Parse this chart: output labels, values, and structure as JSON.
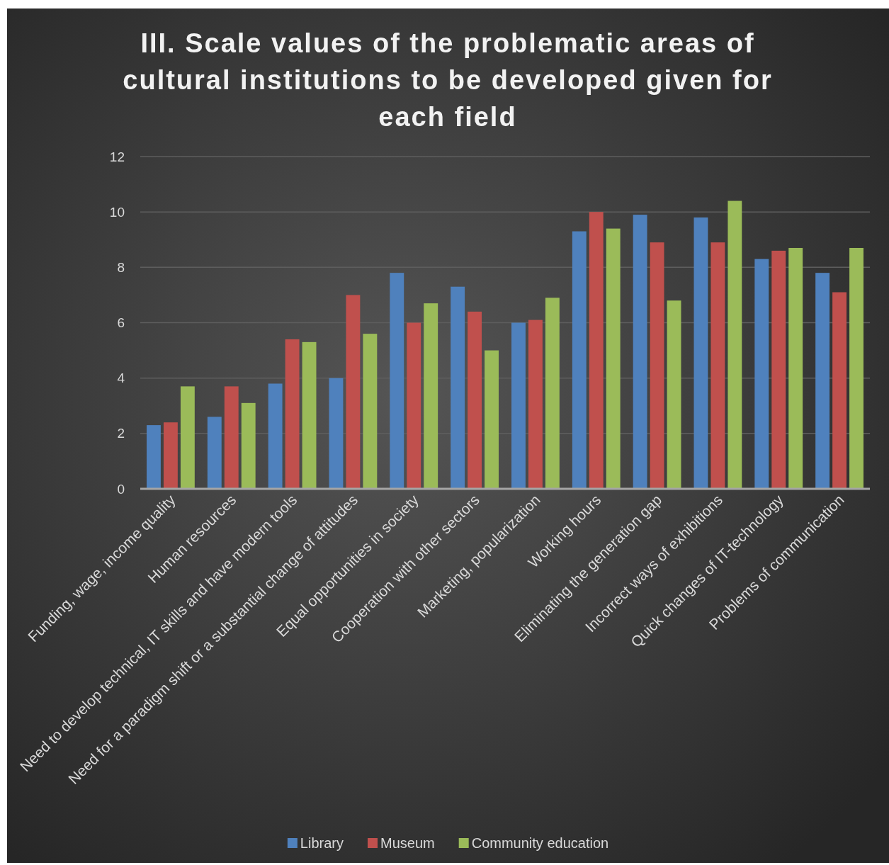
{
  "chart_data": {
    "type": "bar",
    "title": "III. Scale values of the problematic areas of cultural institutions to be developed given for each field",
    "categories": [
      "Funding, wage, income quality",
      "Human resources",
      "Need to develop technical, IT skills and have modern tools",
      "Need for a paradigm shift or a substantial change of attitudes",
      "Equal opportunities in society",
      "Cooperation with other sectors",
      "Marketing, popularization",
      "Working hours",
      "Eliminating the generation gap",
      "Incorrect ways of exhibitions",
      "Quick changes of IT-technology",
      "Problems of communication"
    ],
    "series": [
      {
        "name": "Library",
        "color": "#4f81bd",
        "values": [
          2.3,
          2.6,
          3.8,
          4.0,
          7.8,
          7.3,
          6.0,
          9.3,
          9.9,
          9.8,
          8.3,
          7.8
        ]
      },
      {
        "name": "Museum",
        "color": "#c0504d",
        "values": [
          2.4,
          3.7,
          5.4,
          7.0,
          6.0,
          6.4,
          6.1,
          10.0,
          8.9,
          8.9,
          8.6,
          7.1
        ]
      },
      {
        "name": "Community education",
        "color": "#9bbb59",
        "values": [
          3.7,
          3.1,
          5.3,
          5.6,
          6.7,
          5.0,
          6.9,
          9.4,
          6.8,
          10.4,
          8.7,
          8.7
        ]
      }
    ],
    "ylim": [
      0,
      12
    ],
    "yticks": [
      0,
      2,
      4,
      6,
      8,
      10,
      12
    ],
    "grid": "y",
    "legend": "bottom"
  }
}
